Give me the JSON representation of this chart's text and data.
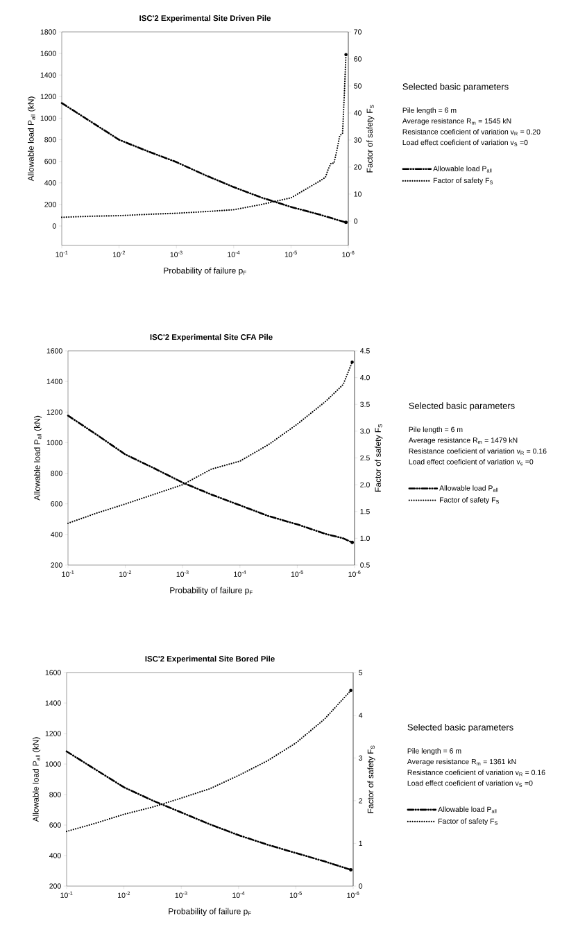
{
  "chart_data": [
    {
      "type": "line",
      "title": "ISC'2 Experimental Site Driven Pile",
      "xlabel": "Probability of failure p$_{F}$",
      "ylabel": "Allowable load P$_{all}$ (kN)",
      "y2label": "Factor of safety F$_{S}$",
      "log": "x",
      "xlim": [
        0.1,
        1e-06
      ],
      "xticks": [
        {
          "value": 0.1,
          "label": "10$^{-1}$"
        },
        {
          "value": 0.01,
          "label": "10$^{-2}$"
        },
        {
          "value": 0.001,
          "label": "10$^{-3}$"
        },
        {
          "value": 0.0001,
          "label": "10$^{-4}$"
        },
        {
          "value": 1e-05,
          "label": "10$^{-5}$"
        },
        {
          "value": 1e-06,
          "label": "10$^{-6}$"
        }
      ],
      "ylim": [
        -180,
        1800
      ],
      "yticks": [
        0,
        200,
        400,
        600,
        800,
        1000,
        1200,
        1400,
        1600,
        1800
      ],
      "y2lim": [
        -9,
        70
      ],
      "y2ticks": [
        0,
        10,
        20,
        30,
        40,
        50,
        60,
        70
      ],
      "legend": "right",
      "marker": "none",
      "series": [
        {
          "name": "Allowable load P$_{all}$",
          "color": "#000000",
          "line_style": "dashed",
          "x": [
            0.1,
            0.0316,
            0.01,
            0.00316,
            0.001,
            0.000316,
            0.0001,
            3.16e-05,
            1e-05,
            3.16e-06,
            1.1e-06
          ],
          "values": [
            1140,
            970,
            800,
            693,
            593,
            472,
            361,
            261,
            177,
            106,
            33
          ]
        },
        {
          "name": "Factor of safety F$_{S}$",
          "color": "#000000",
          "line_style": "dotted",
          "axis": "y2",
          "x": [
            0.1,
            0.0316,
            0.01,
            0.00316,
            0.001,
            0.000316,
            0.0001,
            3.16e-05,
            1e-05,
            5.62e-06,
            3.16e-06,
            2.51e-06,
            2.24e-06,
            2e-06,
            1.78e-06,
            1.58e-06,
            1.41e-06,
            1.26e-06,
            1.17e-06,
            1.1e-06
          ],
          "values": [
            1.4,
            1.8,
            2.0,
            2.5,
            2.9,
            3.5,
            4.2,
            6.2,
            8.6,
            11.7,
            14.8,
            16.2,
            19.2,
            21.4,
            21.4,
            26.3,
            31.6,
            32.5,
            47.5,
            61.6
          ]
        }
      ],
      "annotations": [
        "Selected basic parameters",
        "Pile length = 6 m",
        "Average resistance R$_{m}$ = 1545 kN",
        "Resistance coeficient of variation v$_{R}$ = 0.20",
        "Load effect coeficient of variation v$_{S}$ =0"
      ]
    },
    {
      "type": "line",
      "title": "ISC'2 Experimental Site CFA Pile",
      "xlabel": "Probability of failure p$_{F}$",
      "ylabel": "Allowable load P$_{all}$ (kN)",
      "y2label": "Factor of safety F$_{S}$",
      "log": "x",
      "xlim": [
        0.1,
        1e-06
      ],
      "xticks": [
        {
          "value": 0.1,
          "label": "10$^{-1}$"
        },
        {
          "value": 0.01,
          "label": "10$^{-2}$"
        },
        {
          "value": 0.001,
          "label": "10$^{-3}$"
        },
        {
          "value": 0.0001,
          "label": "10$^{-4}$"
        },
        {
          "value": 1e-05,
          "label": "10$^{-5}$"
        },
        {
          "value": 1e-06,
          "label": "10$^{-6}$"
        }
      ],
      "ylim": [
        200,
        1600
      ],
      "yticks": [
        200,
        400,
        600,
        800,
        1000,
        1200,
        1400,
        1600
      ],
      "y2lim": [
        0.5,
        4.5
      ],
      "y2ticks": [
        0.5,
        {
          "value": 1,
          "label": "1.0"
        },
        1.5,
        {
          "value": 2,
          "label": "2.0"
        },
        2.5,
        {
          "value": 3,
          "label": "3.0"
        },
        3.5,
        {
          "value": 4,
          "label": "4.0"
        },
        4.5
      ],
      "legend": "right",
      "marker": "none",
      "series": [
        {
          "name": "Allowable load P$_{all}$",
          "color": "#000000",
          "line_style": "dashed",
          "x": [
            0.1,
            0.0316,
            0.01,
            0.00316,
            0.001,
            0.000316,
            0.0001,
            3.16e-05,
            1e-05,
            3.16e-06,
            1.58e-06,
            1.1e-06
          ],
          "values": [
            1177,
            1052,
            923,
            833,
            739,
            661,
            591,
            520,
            466,
            403,
            375,
            348
          ]
        },
        {
          "name": "Factor of safety F$_{S}$",
          "color": "#000000",
          "line_style": "dotted",
          "axis": "y2",
          "x": [
            0.1,
            0.0316,
            0.01,
            0.00316,
            0.001,
            0.000316,
            0.0001,
            3.16e-05,
            1e-05,
            3.16e-06,
            1.58e-06,
            1.1e-06
          ],
          "values": [
            1.28,
            1.47,
            1.64,
            1.82,
            2.0,
            2.29,
            2.44,
            2.75,
            3.13,
            3.56,
            3.87,
            4.29
          ]
        }
      ],
      "annotations": [
        "Selected basic parameters",
        "Pile length = 6 m",
        "Average resistance R$_{m}$ = 1479 kN",
        "Resistance coeficient of variation v$_{R}$ = 0.16",
        "Load effect coeficient of variation v$_{s}$ =0"
      ]
    },
    {
      "type": "line",
      "title": "ISC'2 Experimental Site Bored Pile",
      "xlabel": "Probability of failure p$_{F}$",
      "ylabel": "Allowable load P$_{all}$ (kN)",
      "y2label": "Factor of safety F$_{S}$",
      "log": "x",
      "xlim": [
        0.1,
        1e-06
      ],
      "xticks": [
        {
          "value": 0.1,
          "label": "10$^{-1}$"
        },
        {
          "value": 0.01,
          "label": "10$^{-2}$"
        },
        {
          "value": 0.001,
          "label": "10$^{-3}$"
        },
        {
          "value": 0.0001,
          "label": "10$^{-4}$"
        },
        {
          "value": 1e-05,
          "label": "10$^{-5}$"
        },
        {
          "value": 1e-06,
          "label": "10$^{-6}$"
        }
      ],
      "ylim": [
        200,
        1600
      ],
      "yticks": [
        200,
        400,
        600,
        800,
        1000,
        1200,
        1400,
        1600
      ],
      "y2lim": [
        0,
        5
      ],
      "y2ticks": [
        0,
        1,
        2,
        3,
        4,
        5
      ],
      "legend": "right",
      "marker": "none",
      "series": [
        {
          "name": "Allowable load P$_{all}$",
          "color": "#000000",
          "line_style": "dashed",
          "x": [
            0.1,
            0.0316,
            0.01,
            0.00316,
            0.001,
            0.000316,
            0.0001,
            3.16e-05,
            1e-05,
            3.16e-06,
            1.1e-06
          ],
          "values": [
            1083,
            965,
            848,
            761,
            683,
            605,
            534,
            472,
            417,
            362,
            307
          ]
        },
        {
          "name": "Factor of safety F$_{S}$",
          "color": "#000000",
          "line_style": "dotted",
          "axis": "y2",
          "x": [
            0.1,
            0.0316,
            0.01,
            0.00316,
            0.001,
            0.000316,
            0.0001,
            3.16e-05,
            1e-05,
            3.16e-06,
            1.1e-06
          ],
          "values": [
            1.28,
            1.47,
            1.68,
            1.85,
            2.06,
            2.28,
            2.59,
            2.93,
            3.35,
            3.91,
            4.58
          ]
        }
      ],
      "annotations": [
        "Selected basic parameters",
        "Pile length = 6 m",
        "Average resistance R$_{m}$ = 1361 kN",
        "Resistance coeficient of variation v$_{R}$ = 0.16",
        "Load effect coeficient of variation v$_{S}$ =0"
      ]
    }
  ]
}
